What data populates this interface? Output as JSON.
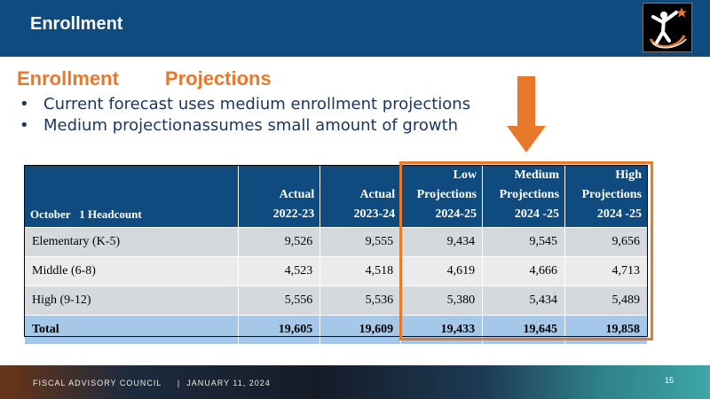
{
  "header": {
    "title": "Enrollment"
  },
  "subtitle": {
    "part1": "Enrollment",
    "part2": "Projections"
  },
  "bullets": [
    "Current forecast uses medium enrollment projections",
    "Medium projectionassumes small amount of growth"
  ],
  "table": {
    "headers": [
      [
        "October",
        "1 Headcount"
      ],
      [
        "Actual",
        "2022-23"
      ],
      [
        "Actual",
        "2023-24"
      ],
      [
        "Low",
        "Projections",
        "2024-25"
      ],
      [
        "Medium",
        "Projections",
        "2024  -25"
      ],
      [
        "High",
        "Projections",
        "2024  -25"
      ]
    ],
    "rows": [
      [
        "Elementary  (K-5)",
        "9,526",
        "9,555",
        "9,434",
        "9,545",
        "9,656"
      ],
      [
        "Middle  (6-8)",
        "4,523",
        "4,518",
        "4,619",
        "4,666",
        "4,713"
      ],
      [
        "High  (9-12)",
        "5,556",
        "5,536",
        "5,380",
        "5,434",
        "5,489"
      ],
      [
        "Total",
        "19,605",
        "19,609",
        "19,433",
        "19,645",
        "19,858"
      ]
    ]
  },
  "footer": {
    "org": "FISCAL    ADVISORY    COUNCIL",
    "separator": "|",
    "date": "JANUARY     11,   2024",
    "page": "15"
  },
  "colors": {
    "header_bg": "#0f4b7e",
    "accent_orange": "#e8792a",
    "bullet_text": "#1a355e",
    "row_light": "#e9ebed",
    "row_dark": "#d5d8dc",
    "total_row": "#a6c8e8"
  },
  "icons": {
    "logo": "figure-with-star-logo",
    "arrow": "down-arrow"
  }
}
